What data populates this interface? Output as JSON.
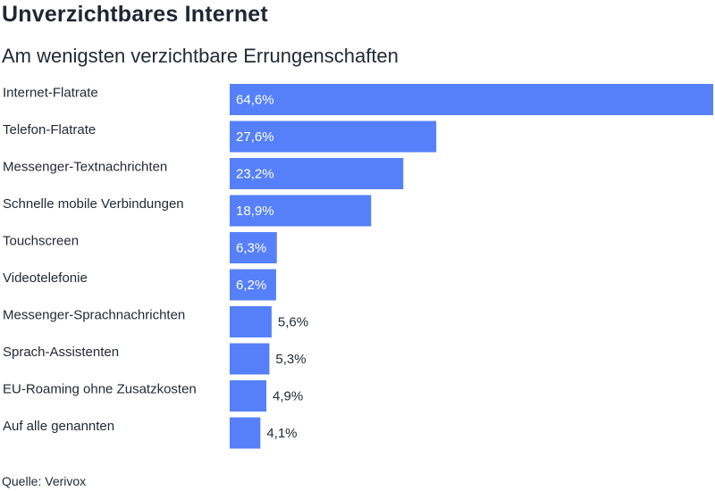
{
  "title": "Unverzichtbares Internet",
  "subtitle": "Am wenigsten verzichtbare Errungenschaften",
  "source": "Quelle: Verivox",
  "colors": {
    "bar": "#5580fa",
    "label_inside": "#ffffff",
    "label_outside": "#222a35"
  },
  "chart_data": {
    "type": "bar",
    "orientation": "horizontal",
    "categories": [
      "Internet-Flatrate",
      "Telefon-Flatrate",
      "Messenger-Textnachrichten",
      "Schnelle mobile Verbindungen",
      "Touchscreen",
      "Videotelefonie",
      "Messenger-Sprachnachrichten",
      "Sprach-Assistenten",
      "EU-Roaming ohne Zusatzkosten",
      "Auf alle genannten"
    ],
    "values": [
      64.6,
      27.6,
      23.2,
      18.9,
      6.3,
      6.2,
      5.6,
      5.3,
      4.9,
      4.1
    ],
    "value_labels": [
      "64,6%",
      "27,6%",
      "23,2%",
      "18,9%",
      "6,3%",
      "6,2%",
      "5,6%",
      "5,3%",
      "4,9%",
      "4,1%"
    ],
    "unit": "%",
    "xlim": [
      0,
      64.6
    ],
    "grid": false,
    "legend": false
  }
}
